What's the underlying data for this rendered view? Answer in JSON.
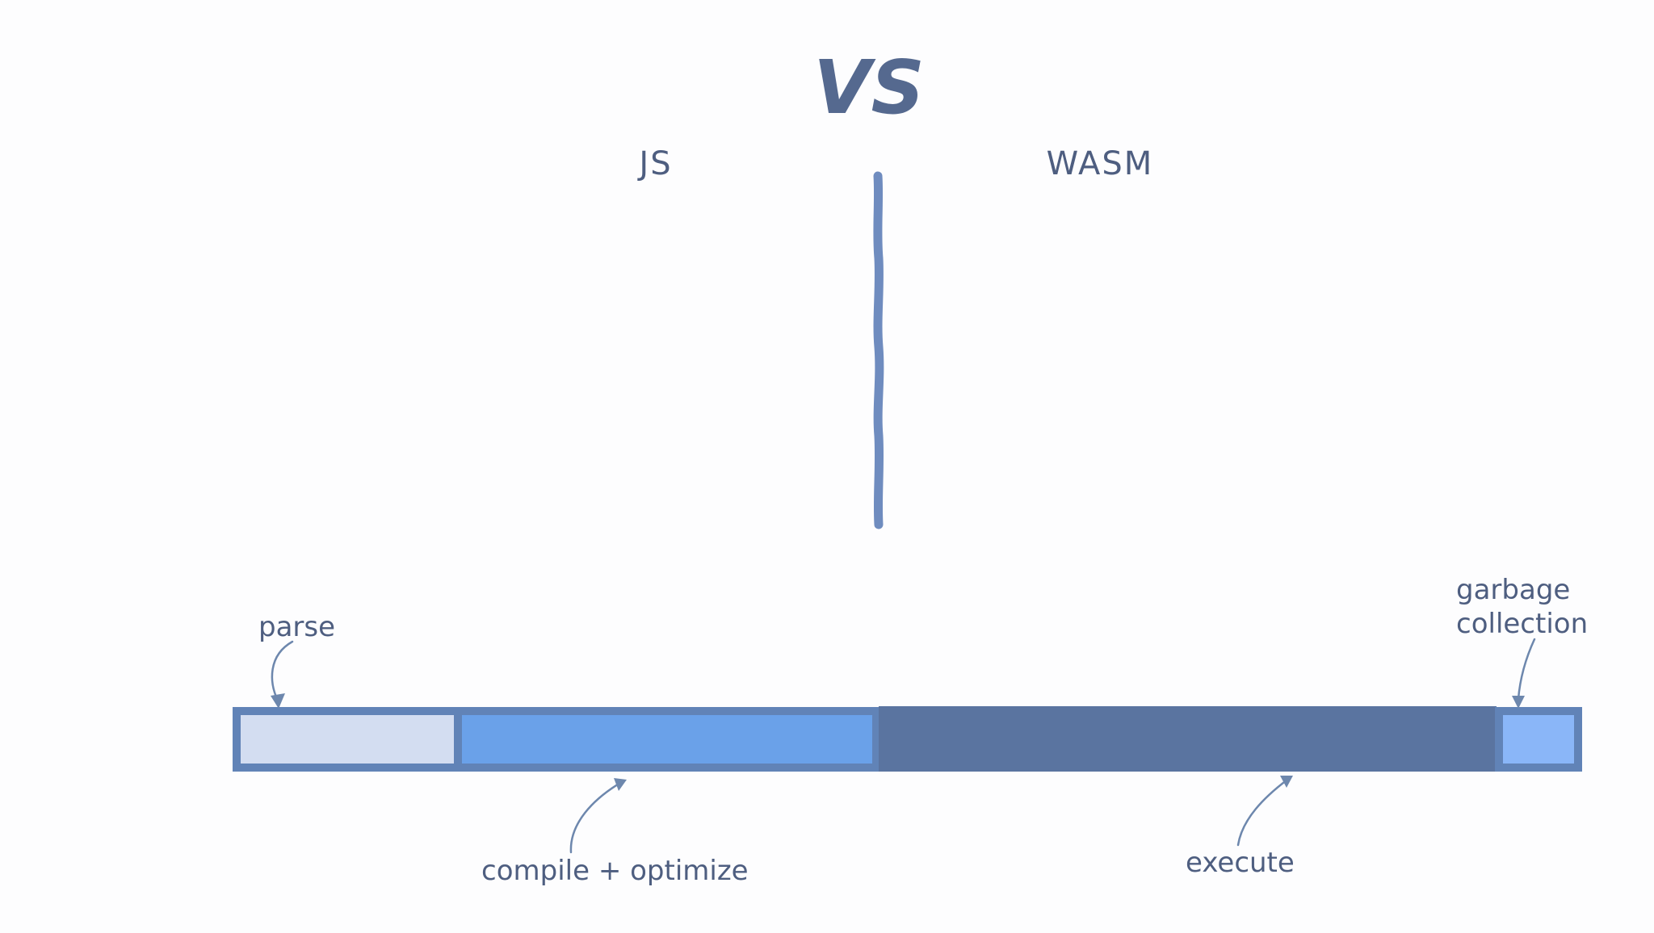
{
  "title": "VS",
  "columns": {
    "left": "JS",
    "right": "WASM"
  },
  "timeline": {
    "segments": [
      {
        "id": "parse",
        "label": "parse",
        "color": "#d3ddf1"
      },
      {
        "id": "compile-optimize",
        "label": "compile + optimize",
        "color": "#6aa1e9"
      },
      {
        "id": "execute",
        "label": "execute",
        "color": "#5a74a0"
      },
      {
        "id": "garbage-collection",
        "label": "garbage collection",
        "label_lines": [
          "garbage",
          "collection"
        ],
        "color": "#8ab6f8"
      }
    ],
    "border_color": "#6183b7"
  },
  "colors": {
    "divider": "#6f8cbf",
    "text": "#4e5e80",
    "title": "#55698f",
    "arrow": "#6d87ad"
  }
}
